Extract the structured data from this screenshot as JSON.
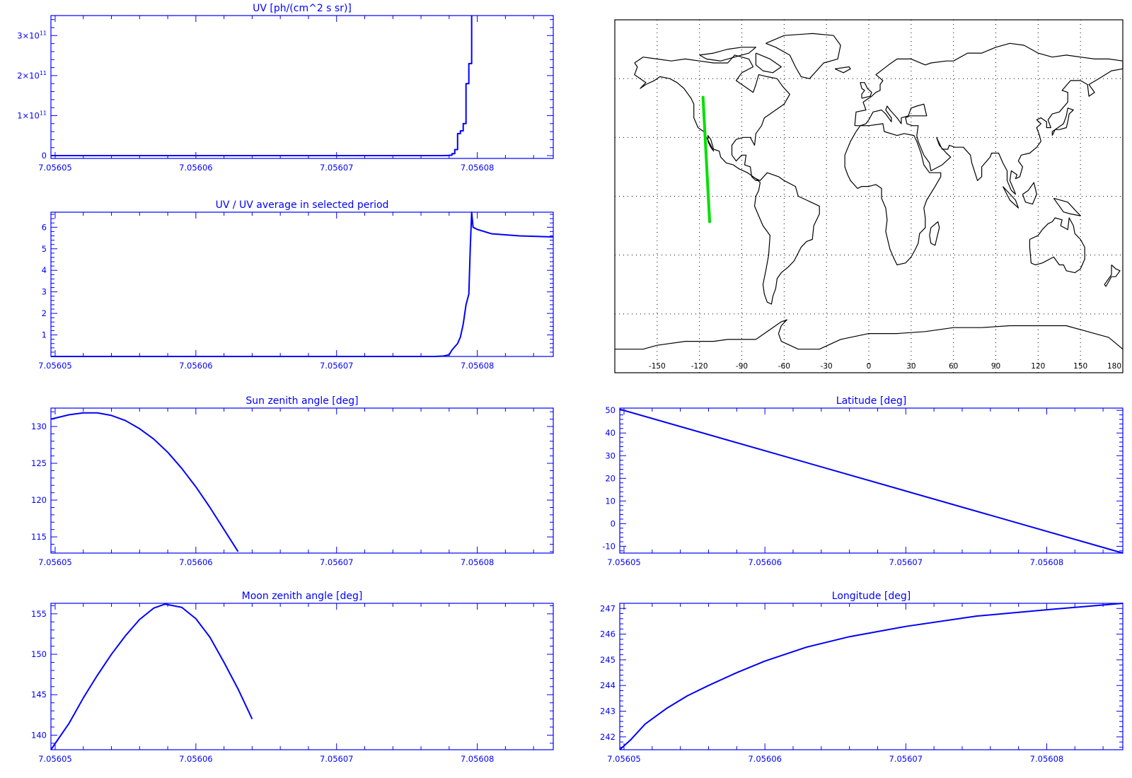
{
  "colors": {
    "axis": "#0000ff",
    "line": "#0000ff",
    "track": "#00e000",
    "coast": "#000000",
    "grid": "#000000",
    "background": "#ffffff"
  },
  "chart_data": [
    {
      "id": "uv",
      "type": "line",
      "title": "UV [ph/(cm^2 s sr)]",
      "xlim": [
        7.0560497,
        7.0560854
      ],
      "ylim": [
        -7000000000.0,
        350000000000.0
      ],
      "x_ticks": [
        7.05605,
        7.05606,
        7.05607,
        7.05608
      ],
      "x_tick_labels": [
        "7.05605",
        "7.05606",
        "7.05607",
        "7.05608"
      ],
      "y_ticks": [
        0,
        100000000000.0,
        200000000000.0,
        300000000000.0
      ],
      "y_tick_labels": [
        {
          "mantissa": "0",
          "exponent": ""
        },
        {
          "mantissa": "1×10",
          "exponent": "11"
        },
        {
          "mantissa": "2×10",
          "exponent": "11"
        },
        {
          "mantissa": "3×10",
          "exponent": "11"
        }
      ],
      "step": true,
      "series": [
        {
          "points": [
            [
              7.0560497,
              0
            ],
            [
              7.05607,
              0
            ],
            [
              7.056077,
              0
            ],
            [
              7.0560776,
              300000000.0
            ],
            [
              7.056078,
              1000000000.0
            ],
            [
              7.0560782,
              5000000000.0
            ],
            [
              7.0560784,
              15000000000.0
            ],
            [
              7.0560786,
              55000000000.0
            ],
            [
              7.0560788,
              62000000000.0
            ],
            [
              7.056079,
              80000000000.0
            ],
            [
              7.0560792,
              180000000000.0
            ],
            [
              7.0560794,
              230000000000.0
            ],
            [
              7.0560796,
              350000000000.0
            ]
          ]
        }
      ]
    },
    {
      "id": "uv-ratio",
      "type": "line",
      "title": "UV / UV average in selected period",
      "xlim": [
        7.0560497,
        7.0560854
      ],
      "ylim": [
        0,
        6.7
      ],
      "x_ticks": [
        7.05605,
        7.05606,
        7.05607,
        7.05608
      ],
      "x_tick_labels": [
        "7.05605",
        "7.05606",
        "7.05607",
        "7.05608"
      ],
      "y_ticks": [
        1,
        2,
        3,
        4,
        5,
        6
      ],
      "y_tick_labels": [
        "1",
        "2",
        "3",
        "4",
        "5",
        "6"
      ],
      "series": [
        {
          "points": [
            [
              7.0560497,
              0
            ],
            [
              7.05607,
              0
            ],
            [
              7.056077,
              0
            ],
            [
              7.0560776,
              0.02
            ],
            [
              7.056078,
              0.08
            ],
            [
              7.0560782,
              0.3
            ],
            [
              7.0560786,
              0.6
            ],
            [
              7.0560788,
              0.9
            ],
            [
              7.056079,
              1.5
            ],
            [
              7.0560792,
              2.4
            ],
            [
              7.0560794,
              2.9
            ],
            [
              7.0560795,
              5.0
            ],
            [
              7.0560796,
              6.7
            ],
            [
              7.0560797,
              6.0
            ],
            [
              7.05608,
              5.9
            ],
            [
              7.056081,
              5.7
            ],
            [
              7.056083,
              5.6
            ],
            [
              7.0560854,
              5.55
            ]
          ]
        }
      ]
    },
    {
      "id": "sun-zenith",
      "type": "line",
      "title": "Sun zenith angle [deg]",
      "xlim": [
        7.0560497,
        7.0560854
      ],
      "ylim": [
        112.8,
        132.5
      ],
      "x_ticks": [
        7.05605,
        7.05606,
        7.05607,
        7.05608
      ],
      "x_tick_labels": [
        "7.05605",
        "7.05606",
        "7.05607",
        "7.05608"
      ],
      "y_ticks": [
        115,
        120,
        125,
        130
      ],
      "y_tick_labels": [
        "115",
        "120",
        "125",
        "130"
      ],
      "series": [
        {
          "points": [
            [
              7.0560497,
              131.0
            ],
            [
              7.056051,
              131.6
            ],
            [
              7.056052,
              131.85
            ],
            [
              7.056053,
              131.85
            ],
            [
              7.056054,
              131.5
            ],
            [
              7.056055,
              130.8
            ],
            [
              7.056056,
              129.7
            ],
            [
              7.056057,
              128.3
            ],
            [
              7.056058,
              126.5
            ],
            [
              7.056059,
              124.3
            ],
            [
              7.05606,
              121.8
            ],
            [
              7.056061,
              119.0
            ],
            [
              7.056062,
              116.0
            ],
            [
              7.056063,
              113.0
            ]
          ]
        }
      ]
    },
    {
      "id": "moon-zenith",
      "type": "line",
      "title": "Moon zenith angle [deg]",
      "xlim": [
        7.0560497,
        7.0560854
      ],
      "ylim": [
        138.2,
        156.3
      ],
      "x_ticks": [
        7.05605,
        7.05606,
        7.05607,
        7.05608
      ],
      "x_tick_labels": [
        "7.05605",
        "7.05606",
        "7.05607",
        "7.05608"
      ],
      "y_ticks": [
        140,
        145,
        150,
        155
      ],
      "y_tick_labels": [
        "140",
        "145",
        "150",
        "155"
      ],
      "series": [
        {
          "points": [
            [
              7.0560497,
              138.2
            ],
            [
              7.056051,
              141.5
            ],
            [
              7.056052,
              144.6
            ],
            [
              7.056053,
              147.4
            ],
            [
              7.056054,
              150.0
            ],
            [
              7.056055,
              152.3
            ],
            [
              7.056056,
              154.3
            ],
            [
              7.056057,
              155.7
            ],
            [
              7.0560578,
              156.2
            ],
            [
              7.056059,
              155.8
            ],
            [
              7.05606,
              154.4
            ],
            [
              7.056061,
              152.1
            ],
            [
              7.056062,
              149.0
            ],
            [
              7.056063,
              145.7
            ],
            [
              7.056064,
              142.0
            ]
          ]
        }
      ]
    },
    {
      "id": "latitude",
      "type": "line",
      "title": "Latitude [deg]",
      "xlim": [
        7.0560497,
        7.0560854
      ],
      "ylim": [
        -13,
        51
      ],
      "x_ticks": [
        7.05605,
        7.05606,
        7.05607,
        7.05608
      ],
      "x_tick_labels": [
        "7.05605",
        "7.05606",
        "7.05607",
        "7.05608"
      ],
      "y_ticks": [
        -10,
        0,
        10,
        20,
        30,
        40,
        50
      ],
      "y_tick_labels": [
        "-10",
        "0",
        "10",
        "20",
        "30",
        "40",
        "50"
      ],
      "series": [
        {
          "points": [
            [
              7.0560497,
              50.5
            ],
            [
              7.0560854,
              -13.0
            ]
          ]
        }
      ]
    },
    {
      "id": "longitude",
      "type": "line",
      "title": "Longitude [deg]",
      "xlim": [
        7.0560497,
        7.0560854
      ],
      "ylim": [
        241.5,
        247.2
      ],
      "x_ticks": [
        7.05605,
        7.05606,
        7.05607,
        7.05608
      ],
      "x_tick_labels": [
        "7.05605",
        "7.05606",
        "7.05607",
        "7.05608"
      ],
      "y_ticks": [
        242,
        243,
        244,
        245,
        246,
        247
      ],
      "y_tick_labels": [
        "242",
        "243",
        "244",
        "245",
        "246",
        "247"
      ],
      "series": [
        {
          "points": [
            [
              7.0560497,
              241.5
            ],
            [
              7.0560505,
              241.9
            ],
            [
              7.0560515,
              242.5
            ],
            [
              7.056053,
              243.1
            ],
            [
              7.0560545,
              243.6
            ],
            [
              7.056056,
              244.0
            ],
            [
              7.056058,
              244.5
            ],
            [
              7.05606,
              244.95
            ],
            [
              7.056063,
              245.5
            ],
            [
              7.056066,
              245.9
            ],
            [
              7.05607,
              246.3
            ],
            [
              7.056075,
              246.7
            ],
            [
              7.05608,
              246.95
            ],
            [
              7.0560854,
              247.2
            ]
          ]
        }
      ]
    }
  ],
  "map": {
    "lon_ticks": [
      "-150",
      "-120",
      "-90",
      "-60",
      "-30",
      "0",
      "30",
      "60",
      "90",
      "120",
      "150",
      "180"
    ],
    "lon_range": [
      -180,
      180
    ],
    "lat_range": [
      -90,
      90
    ],
    "grid_lons": [
      -150,
      -120,
      -90,
      -60,
      -30,
      0,
      30,
      60,
      90,
      120,
      150
    ],
    "grid_lats": [
      -60,
      -30,
      0,
      30,
      60
    ],
    "track": [
      [
        -117.5,
        50.5
      ],
      [
        -112.8,
        -13.0
      ]
    ]
  }
}
